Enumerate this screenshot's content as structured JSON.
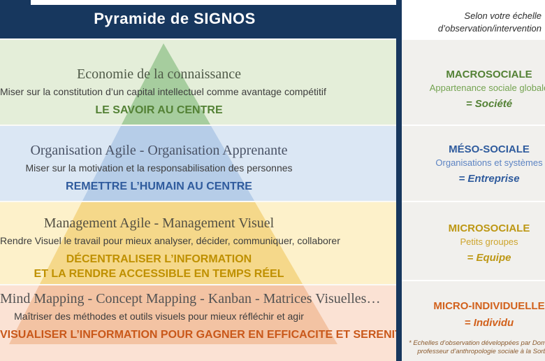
{
  "header": {
    "title": "Pyramide de SIGNOS",
    "note_line1": "Selon votre échelle",
    "note_line2": "d’observation/intervention"
  },
  "bands": [
    {
      "title": "Economie de la connaissance",
      "subtitle": "Miser sur la constitution d’un capital intellectuel comme avantage compétitif",
      "statement_lines": [
        "LE SAVOIR AU CENTRE"
      ],
      "scale": {
        "label": "MACROSOCIALE",
        "description": "Appartenance sociale globale",
        "equals": "= Société"
      },
      "colors": {
        "bg": "#e4eed9",
        "tri": "#a6cd9e",
        "title": "#4f5a48",
        "accent": "#538135",
        "scale": "#538135",
        "scale-light": "#74a351"
      }
    },
    {
      "title": "Organisation Agile - Organisation Apprenante",
      "subtitle": "Miser sur la motivation et la responsabilisation des personnes",
      "statement_lines": [
        "REMETTRE L’HUMAIN AU CENTRE"
      ],
      "scale": {
        "label": "MÉSO-SOCIALE",
        "description": "Organisations et systèmes",
        "equals": "= Entreprise"
      },
      "colors": {
        "bg": "#dbe7f4",
        "tri": "#b6cde8",
        "title": "#4a5366",
        "accent": "#2f5b9d",
        "scale": "#2f5b9d",
        "scale-light": "#5c83c3"
      }
    },
    {
      "title": "Management Agile - Management Visuel",
      "subtitle": "Rendre Visuel le travail pour mieux analyser, décider, communiquer, collaborer",
      "statement_lines": [
        "DÉCENTRALISER L’INFORMATION",
        "ET LA RENDRE ACCESSIBLE EN TEMPS RÉEL"
      ],
      "scale": {
        "label": "MICROSOCIALE",
        "description": "Petits groupes",
        "equals": "= Equipe"
      },
      "colors": {
        "bg": "#fdf1ca",
        "tri": "#f5d88a",
        "title": "#545043",
        "accent": "#bf9000",
        "scale": "#bd9714",
        "scale-light": "#cda42c"
      }
    },
    {
      "title": "Mind Mapping - Concept Mapping - Kanban - Matrices Visuelles…",
      "subtitle": "Maîtriser des méthodes et outils visuels pour mieux réfléchir et agir",
      "statement_lines": [
        "VISUALISER L’INFORMATION POUR GAGNER EN EFFICACITE ET SERENITE"
      ],
      "scale": {
        "label": "MICRO-INDIVIDUELLE",
        "description": "",
        "equals": "= Individu"
      },
      "colors": {
        "bg": "#fbe2d4",
        "tri": "#f3c3a3",
        "title": "#535353",
        "accent": "#c9581a",
        "scale": "#d2611c",
        "scale-light": "#d2611c"
      }
    }
  ],
  "footnote": {
    "line1": "* Echelles d’observation développées par Dominiq",
    "line2": "professeur d’anthropologie sociale à la Sorb"
  }
}
